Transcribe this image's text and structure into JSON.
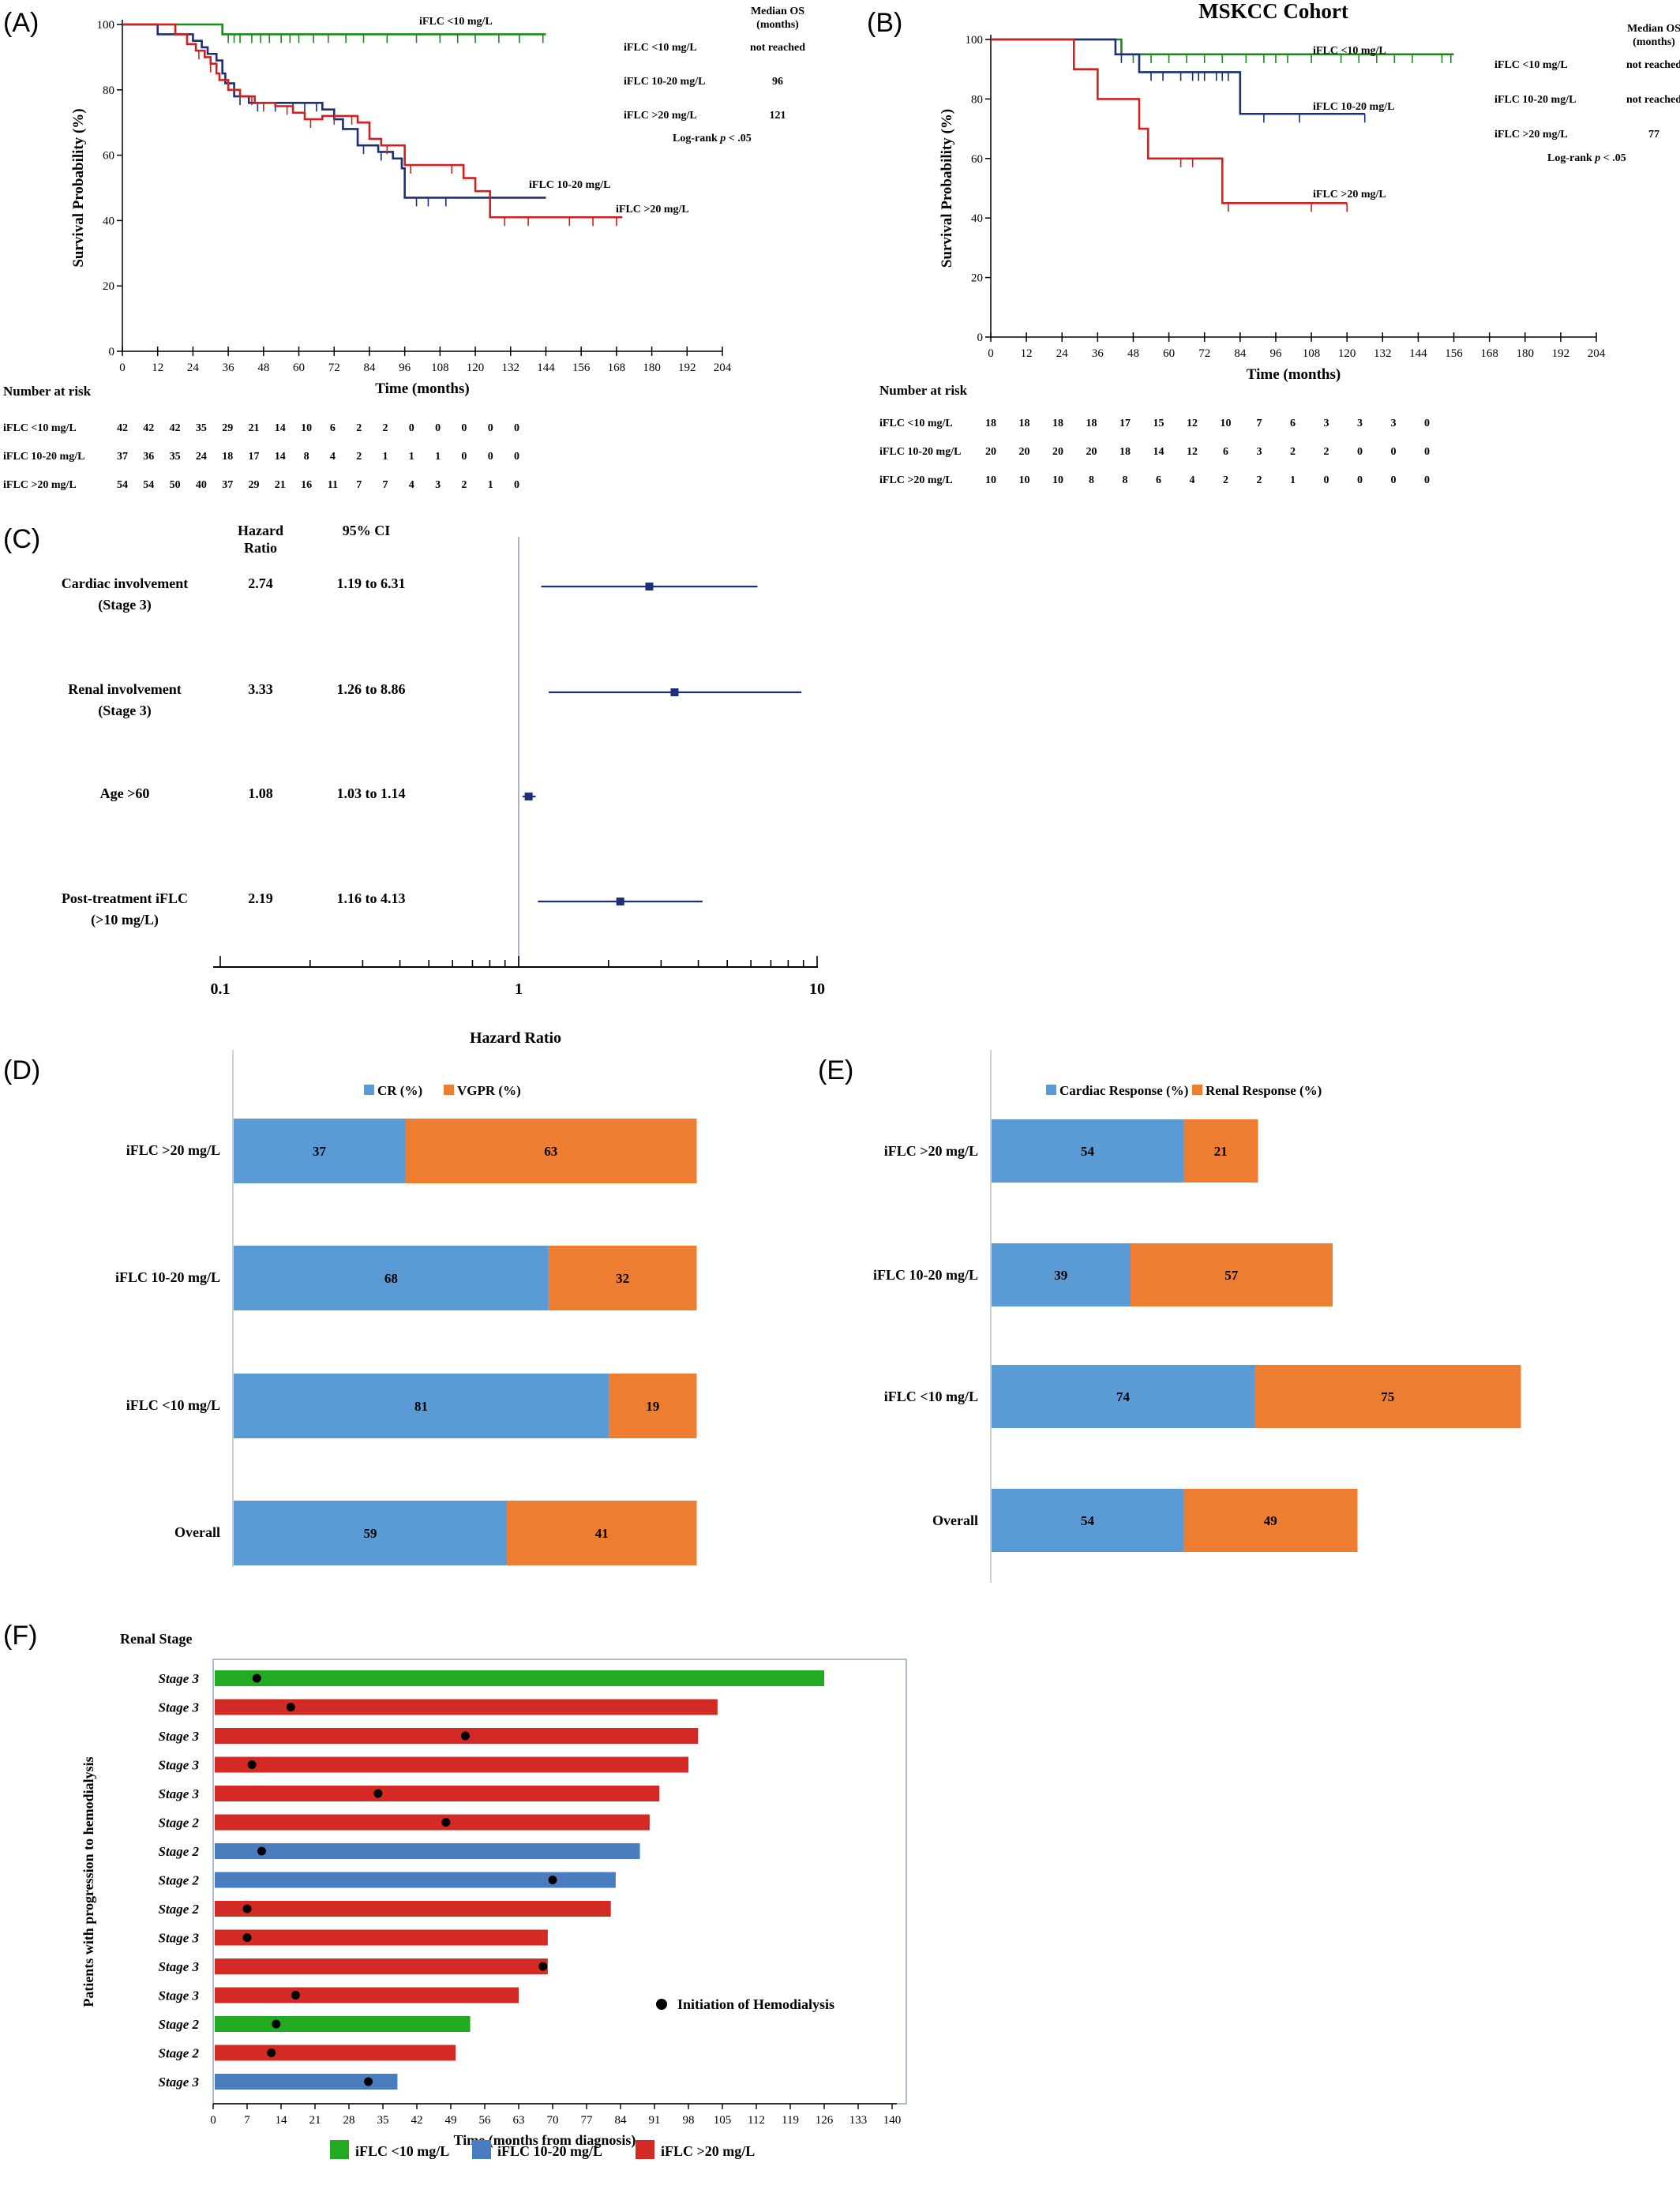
{
  "colors": {
    "green": "#1a8a1a",
    "navy": "#1b2f7a",
    "red": "#d21f1f",
    "barBlue": "#5b9bd5",
    "barOrange": "#ed7d31",
    "fGreen": "#22aa22",
    "fBlue": "#4a7cc0",
    "fRed": "#d42a25"
  },
  "chart_data": [
    {
      "panel": "(A)",
      "type": "line",
      "title": "",
      "xlabel": "Time (months)",
      "ylabel": "Survival Probability (%)",
      "xlim": [
        0,
        204
      ],
      "ylim": [
        0,
        100
      ],
      "xticks": [
        0,
        12,
        24,
        36,
        48,
        60,
        72,
        84,
        96,
        108,
        120,
        132,
        144,
        156,
        168,
        180,
        192,
        204
      ],
      "yticks": [
        0,
        20,
        40,
        60,
        80,
        100
      ],
      "series": [
        {
          "name": "iFLC <10 mg/L",
          "color": "green",
          "x": [
            0,
            34,
            34,
            144
          ],
          "y": [
            100,
            100,
            97,
            97
          ],
          "censor_x": [
            36,
            38,
            40,
            44,
            47,
            50,
            54,
            57,
            60,
            65,
            70,
            76,
            82,
            90,
            100,
            108,
            114,
            120,
            128,
            135,
            143
          ]
        },
        {
          "name": "iFLC 10-20 mg/L",
          "color": "navy",
          "x": [
            0,
            8,
            12,
            20,
            24,
            27,
            29,
            32,
            34,
            35,
            38,
            43,
            50,
            60,
            64,
            68,
            72,
            75,
            80,
            87,
            92,
            95,
            96,
            106,
            120,
            130,
            144
          ],
          "y": [
            100,
            100,
            97,
            97,
            95,
            93,
            91,
            89,
            85,
            82,
            78,
            76,
            76,
            76,
            76,
            74,
            71,
            68,
            63,
            61,
            59,
            56,
            47,
            47,
            47,
            47,
            47
          ],
          "censor_x": [
            40,
            46,
            52,
            58,
            62,
            66,
            82,
            88,
            100,
            104,
            110
          ]
        },
        {
          "name": "iFLC >20 mg/L",
          "color": "red",
          "x": [
            0,
            13,
            18,
            22,
            25,
            28,
            30,
            32,
            33,
            36,
            40,
            45,
            52,
            58,
            62,
            68,
            80,
            84,
            88,
            96,
            104,
            110,
            116,
            120,
            125,
            132,
            144,
            158,
            170
          ],
          "y": [
            100,
            100,
            97,
            94,
            92,
            90,
            88,
            85,
            83,
            80,
            78,
            76,
            75,
            73,
            71,
            72,
            70,
            65,
            63,
            57,
            57,
            57,
            53,
            49,
            41,
            41,
            41,
            41,
            41
          ],
          "censor_x": [
            26,
            30,
            44,
            48,
            56,
            64,
            72,
            78,
            90,
            98,
            112,
            130,
            138,
            152,
            160,
            168
          ]
        }
      ],
      "labels": [
        "iFLC <10 mg/L",
        "iFLC 10-20 mg/L",
        "iFLC >20 mg/L"
      ],
      "median_header": [
        "Median OS",
        "(months)"
      ],
      "median_rows": [
        {
          "label": "iFLC <10 mg/L",
          "value": "not reached"
        },
        {
          "label": "iFLC 10-20 mg/L",
          "value": "96"
        },
        {
          "label": "iFLC >20 mg/L",
          "value": "121"
        }
      ],
      "logrank": "Log-rank p < .05",
      "risk_title": "Number at risk",
      "risk_rows": [
        {
          "label": "iFLC <10 mg/L",
          "values": [
            "42",
            "42",
            "42",
            "35",
            "29",
            "21",
            "14",
            "10",
            "6",
            "2",
            "2",
            "0",
            "0",
            "0",
            "0",
            "0"
          ]
        },
        {
          "label": "iFLC 10-20 mg/L",
          "values": [
            "37",
            "36",
            "35",
            "24",
            "18",
            "17",
            "14",
            "8",
            "4",
            "2",
            "1",
            "1",
            "1",
            "0",
            "0",
            "0"
          ]
        },
        {
          "label": "iFLC >20 mg/L",
          "values": [
            "54",
            "54",
            "50",
            "40",
            "37",
            "29",
            "21",
            "16",
            "11",
            "7",
            "7",
            "4",
            "3",
            "2",
            "1",
            "0"
          ]
        }
      ]
    },
    {
      "panel": "(B)",
      "type": "line",
      "title": "MSKCC Cohort",
      "xlabel": "Time (months)",
      "ylabel": "Survival Probability (%)",
      "xlim": [
        0,
        204
      ],
      "ylim": [
        0,
        100
      ],
      "xticks": [
        0,
        12,
        24,
        36,
        48,
        60,
        72,
        84,
        96,
        108,
        120,
        132,
        144,
        156,
        168,
        180,
        192,
        204
      ],
      "yticks": [
        0,
        20,
        40,
        60,
        80,
        100
      ],
      "series": [
        {
          "name": "iFLC <10 mg/L",
          "color": "green",
          "x": [
            0,
            44,
            44,
            156
          ],
          "y": [
            100,
            100,
            95,
            95
          ],
          "censor_x": [
            48,
            54,
            60,
            66,
            72,
            78,
            86,
            92,
            96,
            100,
            108,
            118,
            124,
            130,
            136,
            142,
            152,
            155
          ]
        },
        {
          "name": "iFLC 10-20 mg/L",
          "color": "navy",
          "x": [
            0,
            42,
            42,
            50,
            50,
            84,
            84,
            126
          ],
          "y": [
            100,
            100,
            95,
            95,
            89,
            89,
            75,
            75
          ],
          "censor_x": [
            44,
            54,
            58,
            64,
            68,
            70,
            72,
            76,
            78,
            80,
            92,
            104,
            126
          ]
        },
        {
          "name": "iFLC >20 mg/L",
          "color": "red",
          "x": [
            0,
            28,
            28,
            36,
            36,
            50,
            50,
            53,
            53,
            78,
            78,
            120
          ],
          "y": [
            100,
            100,
            90,
            90,
            80,
            80,
            70,
            70,
            60,
            60,
            45,
            45
          ],
          "censor_x": [
            64,
            68,
            80,
            108,
            120
          ]
        }
      ],
      "labels": [
        "iFLC <10 mg/L",
        "iFLC 10-20 mg/L",
        "iFLC >20 mg/L"
      ],
      "median_header": [
        "Median OS",
        "(months)"
      ],
      "median_rows": [
        {
          "label": "iFLC <10 mg/L",
          "value": "not reached"
        },
        {
          "label": "iFLC 10-20 mg/L",
          "value": "not reached"
        },
        {
          "label": "iFLC >20 mg/L",
          "value": "77"
        }
      ],
      "logrank": "Log-rank p < .05",
      "risk_title": "Number at risk",
      "risk_rows": [
        {
          "label": "iFLC <10 mg/L",
          "values": [
            "18",
            "18",
            "18",
            "18",
            "17",
            "15",
            "12",
            "10",
            "7",
            "6",
            "3",
            "3",
            "3",
            "0"
          ]
        },
        {
          "label": "iFLC 10-20 mg/L",
          "values": [
            "20",
            "20",
            "20",
            "20",
            "18",
            "14",
            "12",
            "6",
            "3",
            "2",
            "2",
            "0",
            "0",
            "0"
          ]
        },
        {
          "label": "iFLC >20 mg/L",
          "values": [
            "10",
            "10",
            "10",
            "8",
            "8",
            "6",
            "4",
            "2",
            "2",
            "1",
            "0",
            "0",
            "0",
            "0"
          ]
        }
      ]
    },
    {
      "panel": "(C)",
      "type": "forest",
      "xlabel": "Hazard Ratio",
      "xscale": "log",
      "xlim": [
        0.1,
        10
      ],
      "xticks": [
        "0.1",
        "1",
        "10"
      ],
      "col_headers": [
        "Hazard Ratio",
        "95% CI"
      ],
      "rows": [
        {
          "label": [
            "Cardiac involvement",
            "(Stage 3)"
          ],
          "hr_text": "2.74",
          "ci_text": "1.19 to 6.31",
          "hr": 2.74,
          "lo": 1.19,
          "hi": 6.31
        },
        {
          "label": [
            "Renal involvement",
            "(Stage 3)"
          ],
          "hr_text": "3.33",
          "ci_text": "1.26 to 8.86",
          "hr": 3.33,
          "lo": 1.26,
          "hi": 8.86
        },
        {
          "label": [
            "Age >60"
          ],
          "hr_text": "1.08",
          "ci_text": "1.03 to 1.14",
          "hr": 1.08,
          "lo": 1.03,
          "hi": 1.14
        },
        {
          "label": [
            "Post-treatment iFLC",
            "(>10 mg/L)"
          ],
          "hr_text": "2.19",
          "ci_text": "1.16 to 4.13",
          "hr": 2.19,
          "lo": 1.16,
          "hi": 4.13
        }
      ]
    },
    {
      "panel": "(D)",
      "type": "bar",
      "orientation": "horizontal",
      "stacked": true,
      "categories": [
        "iFLC >20 mg/L",
        "iFLC 10-20 mg/L",
        "iFLC <10 mg/L",
        "Overall"
      ],
      "series": [
        {
          "name": "CR (%)",
          "color": "barBlue",
          "values": [
            37,
            68,
            81,
            59
          ]
        },
        {
          "name": "VGPR (%)",
          "color": "barOrange",
          "values": [
            63,
            32,
            19,
            41
          ]
        }
      ]
    },
    {
      "panel": "(E)",
      "type": "bar",
      "orientation": "horizontal",
      "stacked": true,
      "categories": [
        "iFLC >20 mg/L",
        "iFLC 10-20 mg/L",
        "iFLC <10 mg/L",
        "Overall"
      ],
      "series": [
        {
          "name": "Cardiac Response (%)",
          "color": "barBlue",
          "values": [
            54,
            39,
            74,
            54
          ]
        },
        {
          "name": "Renal Response (%)",
          "color": "barOrange",
          "values": [
            21,
            57,
            75,
            49
          ]
        }
      ]
    },
    {
      "panel": "(F)",
      "type": "bar",
      "orientation": "horizontal",
      "xlabel": "Time (months from diagnosis)",
      "ylabel": "Patients with progression to hemodialysis",
      "row_header": "Renal Stage",
      "xlim": [
        0,
        140
      ],
      "xticks": [
        0,
        7,
        14,
        21,
        28,
        35,
        42,
        49,
        56,
        63,
        70,
        77,
        84,
        91,
        98,
        105,
        112,
        119,
        126,
        133,
        140
      ],
      "marker_legend": "Initiation of Hemodialysis",
      "legend": [
        {
          "name": "iFLC <10 mg/L",
          "color": "fGreen"
        },
        {
          "name": "iFLC 10-20 mg/L",
          "color": "fBlue"
        },
        {
          "name": "iFLC >20 mg/L",
          "color": "fRed"
        }
      ],
      "rows": [
        {
          "stage": "Stage 3",
          "group": "fGreen",
          "end": 126,
          "dot": 9
        },
        {
          "stage": "Stage 3",
          "group": "fRed",
          "end": 104,
          "dot": 16
        },
        {
          "stage": "Stage 3",
          "group": "fRed",
          "end": 100,
          "dot": 52
        },
        {
          "stage": "Stage 3",
          "group": "fRed",
          "end": 98,
          "dot": 8
        },
        {
          "stage": "Stage 3",
          "group": "fRed",
          "end": 92,
          "dot": 34
        },
        {
          "stage": "Stage 2",
          "group": "fRed",
          "end": 90,
          "dot": 48
        },
        {
          "stage": "Stage 2",
          "group": "fBlue",
          "end": 88,
          "dot": 10
        },
        {
          "stage": "Stage 2",
          "group": "fBlue",
          "end": 83,
          "dot": 70
        },
        {
          "stage": "Stage 2",
          "group": "fRed",
          "end": 82,
          "dot": 7
        },
        {
          "stage": "Stage 3",
          "group": "fRed",
          "end": 69,
          "dot": 7
        },
        {
          "stage": "Stage 3",
          "group": "fRed",
          "end": 69,
          "dot": 68
        },
        {
          "stage": "Stage 3",
          "group": "fRed",
          "end": 63,
          "dot": 17
        },
        {
          "stage": "Stage 2",
          "group": "fGreen",
          "end": 53,
          "dot": 13
        },
        {
          "stage": "Stage 2",
          "group": "fRed",
          "end": 50,
          "dot": 12
        },
        {
          "stage": "Stage 3",
          "group": "fBlue",
          "end": 38,
          "dot": 32
        }
      ]
    }
  ]
}
